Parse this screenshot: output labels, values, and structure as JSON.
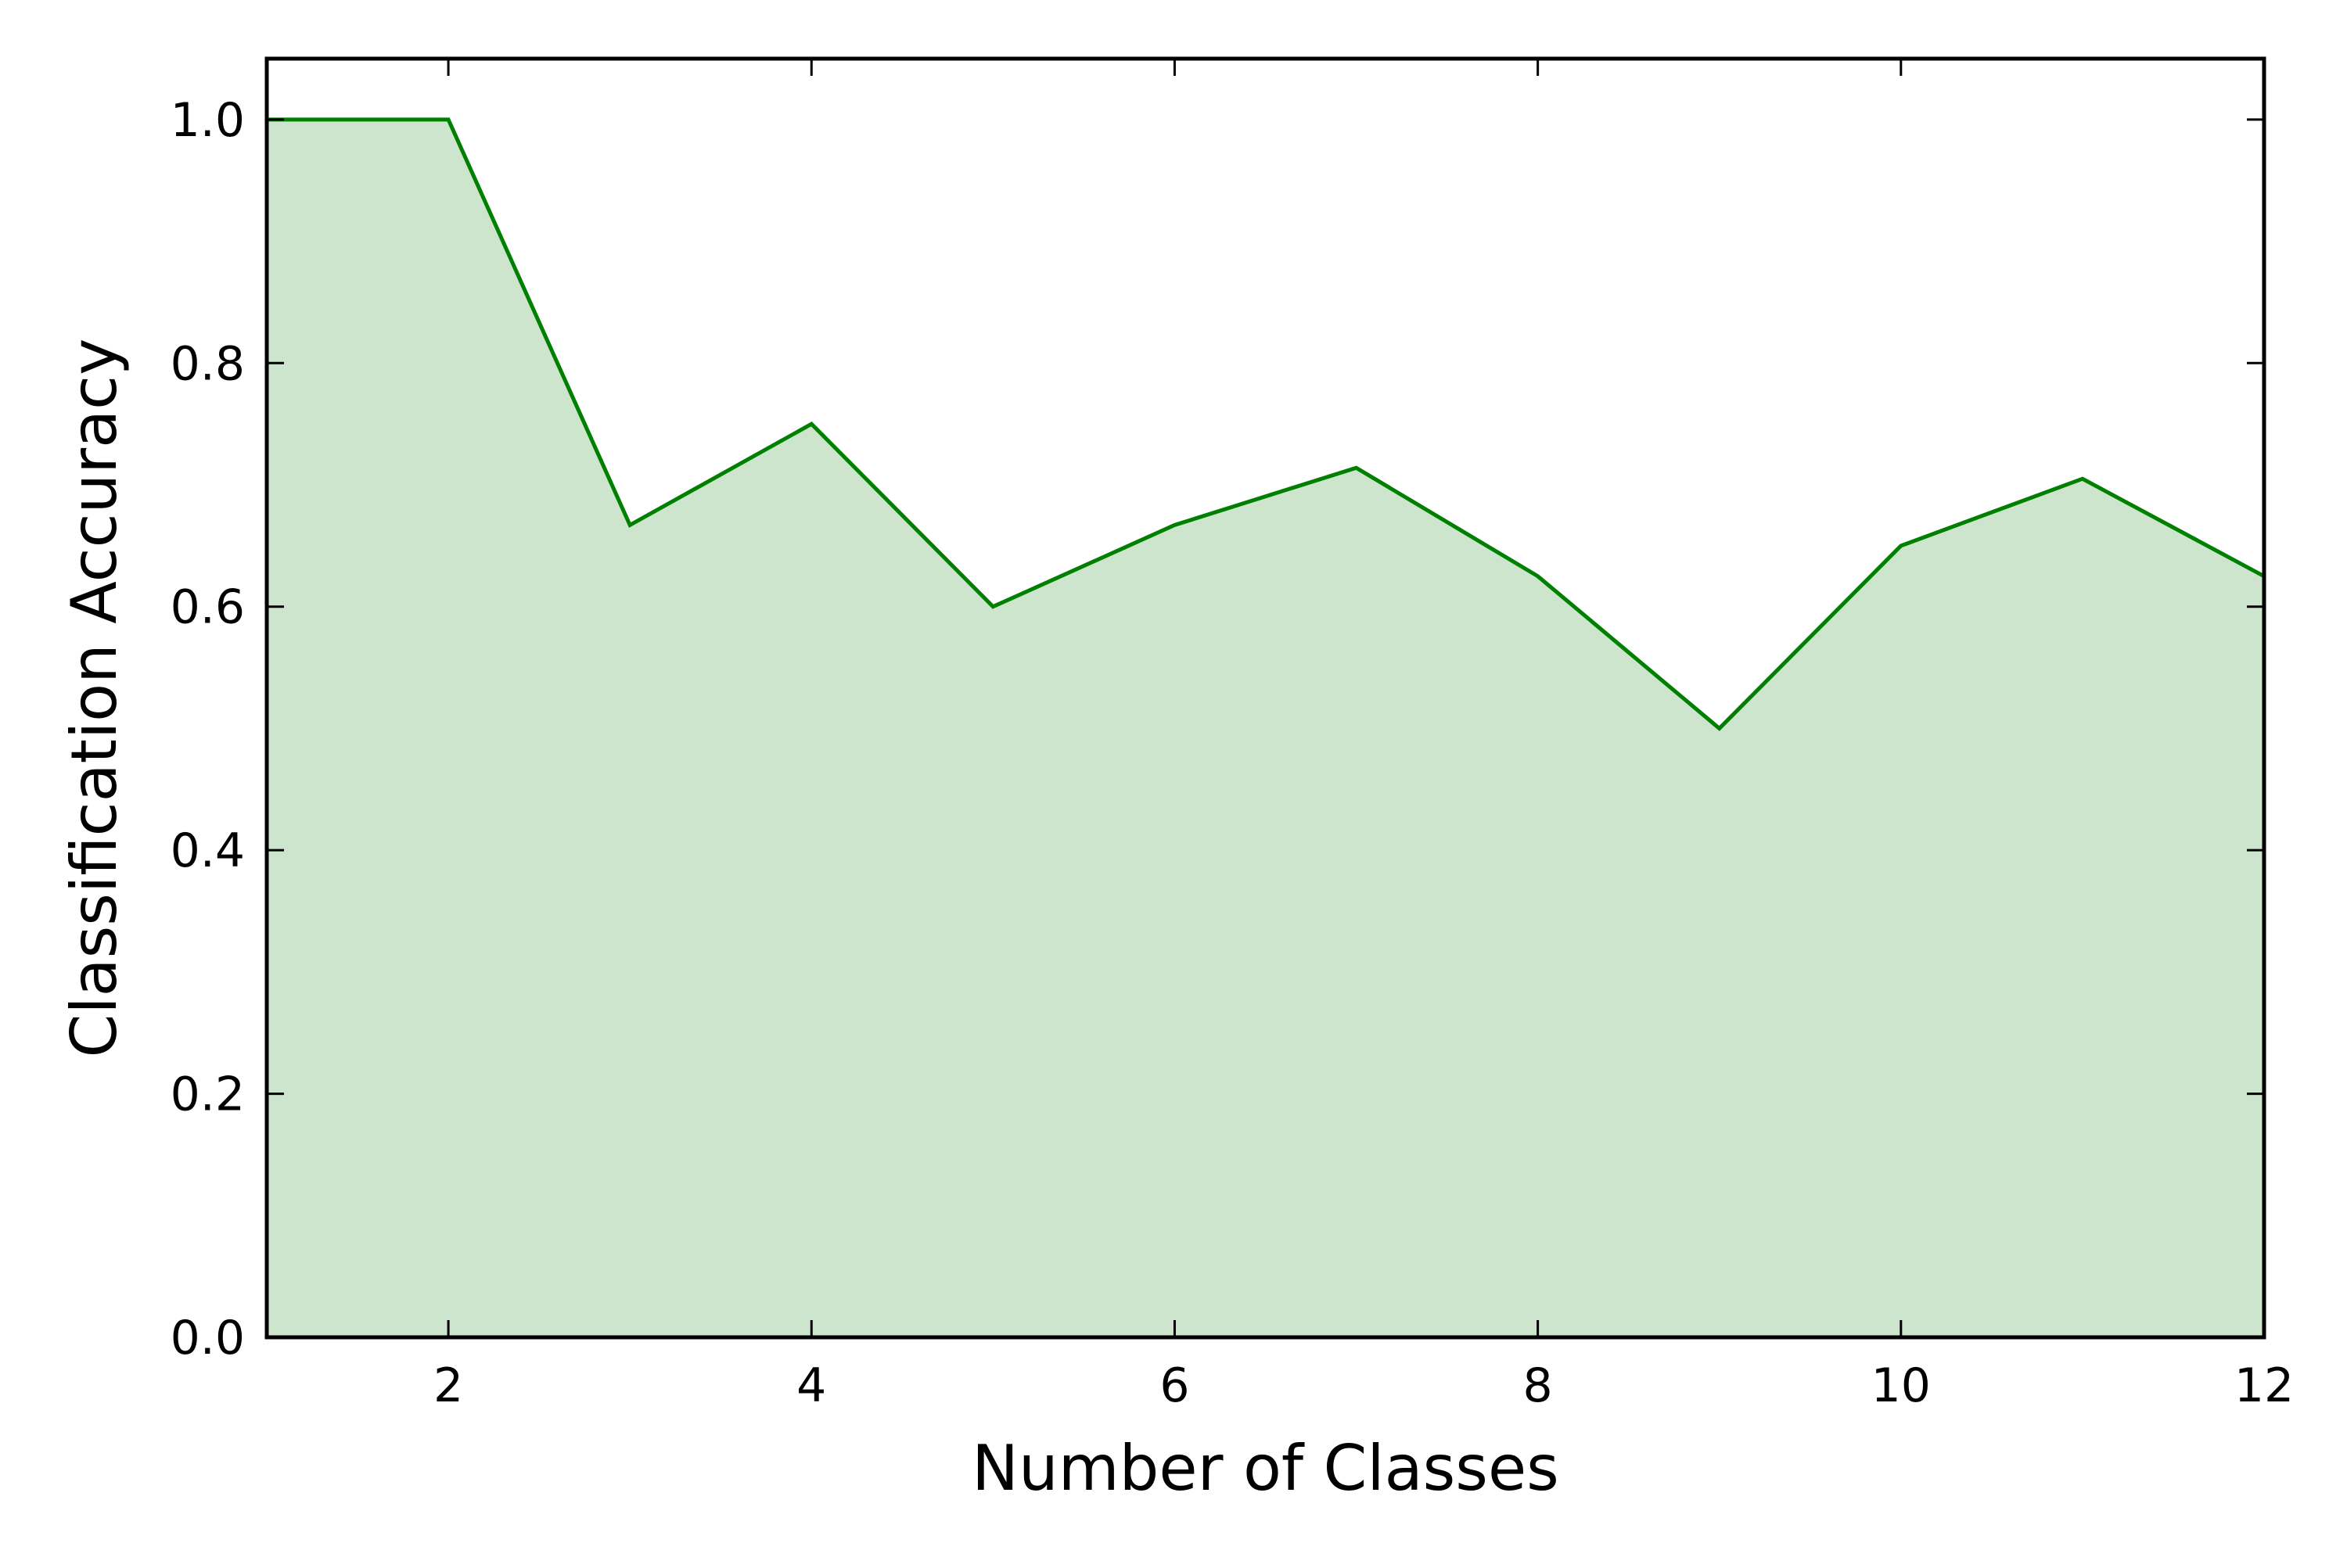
{
  "chart_data": {
    "type": "area",
    "xlabel": "Number of Classes",
    "ylabel": "Classification Accuracy",
    "xlim": [
      1,
      12
    ],
    "ylim": [
      0.0,
      1.05
    ],
    "grid": false,
    "x_ticks": [
      "2",
      "4",
      "6",
      "8",
      "10",
      "12"
    ],
    "y_ticks": [
      "0.0",
      "0.2",
      "0.4",
      "0.6",
      "0.8",
      "1.0"
    ],
    "line_color": "#008000",
    "fill_color": "#cde5cd",
    "series": [
      {
        "x": [
          1,
          2,
          3,
          4,
          5,
          6,
          7,
          8,
          9,
          10,
          11,
          12
        ],
        "y": [
          1.0,
          1.0,
          0.667,
          0.75,
          0.6,
          0.667,
          0.714,
          0.625,
          0.5,
          0.65,
          0.705,
          0.625
        ]
      }
    ]
  }
}
